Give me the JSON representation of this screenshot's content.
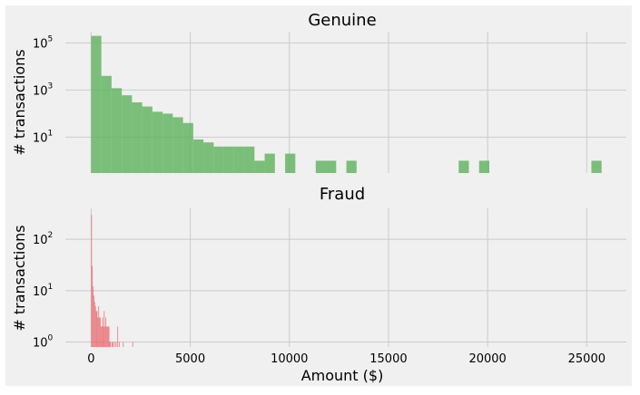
{
  "chart_data": [
    {
      "type": "bar",
      "title": "Genuine",
      "xlabel": "",
      "ylabel": "# transactions",
      "yscale": "log",
      "ylim": [
        0.3,
        300000
      ],
      "xlim": [
        -1300,
        27000
      ],
      "grid": true,
      "bin_width": 515,
      "color": "#5cb25d",
      "xticks": [
        0,
        5000,
        10000,
        15000,
        20000,
        25000
      ],
      "xtick_labels": [],
      "yticks": [
        100000,
        1000,
        10
      ],
      "ytick_labels": [
        {
          "base": "10",
          "exp": "5"
        },
        {
          "base": "10",
          "exp": "3"
        },
        {
          "base": "10",
          "exp": "1"
        }
      ],
      "bins_left": [
        0,
        515,
        1030,
        1545,
        2060,
        2575,
        3090,
        3605,
        4120,
        4635,
        5150,
        5665,
        6180,
        6695,
        7210,
        7725,
        8240,
        8755,
        9785,
        11330,
        11845,
        12875,
        18540,
        19570,
        25235
      ],
      "counts": [
        200000,
        4000,
        1200,
        600,
        300,
        200,
        120,
        100,
        70,
        40,
        8,
        6,
        4,
        4,
        4,
        4,
        1,
        2,
        2,
        1,
        1,
        1,
        1,
        1,
        1
      ]
    },
    {
      "type": "bar",
      "title": "Fraud",
      "xlabel": "Amount ($)",
      "ylabel": "# transactions",
      "yscale": "log",
      "ylim": [
        0.8,
        400
      ],
      "xlim": [
        -1300,
        27000
      ],
      "grid": true,
      "bin_width": 40,
      "color": "#e8666b",
      "xticks": [
        0,
        5000,
        10000,
        15000,
        20000,
        25000
      ],
      "xtick_labels": [
        "0",
        "5000",
        "10000",
        "15000",
        "20000",
        "25000"
      ],
      "yticks": [
        100,
        10,
        1
      ],
      "ytick_labels": [
        {
          "base": "10",
          "exp": "2"
        },
        {
          "base": "10",
          "exp": "1"
        },
        {
          "base": "10",
          "exp": "0"
        }
      ],
      "bins_left": [
        0,
        40,
        80,
        120,
        160,
        200,
        240,
        280,
        320,
        360,
        400,
        440,
        480,
        520,
        560,
        600,
        640,
        680,
        720,
        760,
        800,
        840,
        880,
        920,
        960,
        1040,
        1080,
        1160,
        1240,
        1320,
        1400,
        1600,
        2080
      ],
      "counts": [
        300,
        30,
        12,
        8,
        6,
        5,
        4,
        4,
        3,
        5,
        3,
        3,
        2,
        2,
        3,
        2,
        4,
        2,
        3,
        2,
        2,
        2,
        2,
        1,
        1,
        1,
        1,
        1,
        1,
        2,
        1,
        1,
        1
      ]
    }
  ]
}
